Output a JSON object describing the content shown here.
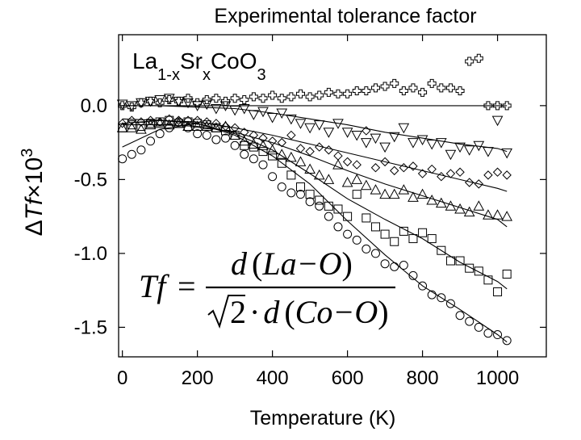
{
  "chart_data": {
    "type": "scatter",
    "title": "Experimental tolerance factor",
    "xlabel": "Temperature (K)",
    "ylabel": {
      "prefix": "Δ",
      "italic": "Tf",
      "times": "×",
      "base": "10",
      "exp": "3"
    },
    "xlim": [
      -10,
      1130
    ],
    "ylim": [
      -1.7,
      0.48
    ],
    "xticks": [
      0,
      200,
      400,
      600,
      800,
      1000
    ],
    "xtick_labels": [
      "0",
      "200",
      "400",
      "600",
      "800",
      "1000"
    ],
    "yticks": [
      0.0,
      -0.5,
      -1.0,
      -1.5
    ],
    "ytick_labels": [
      "0.0",
      "-0.5",
      "-1.0",
      "-1.5"
    ],
    "grid": false,
    "annotation": {
      "base1": "La",
      "sub1": "1-x",
      "base2": "Sr",
      "sub2": "x",
      "base3": "CoO",
      "sub3": "3"
    },
    "formula": {
      "lhs": "Tf",
      "eq": "=",
      "num_d": "d",
      "num_inner": "La−O",
      "den_sqrt": "2",
      "den_dot": "·",
      "den_d": "d",
      "den_inner": "Co−O"
    },
    "series": [
      {
        "marker": "circle",
        "x": [
          0,
          25,
          50,
          75,
          100,
          125,
          150,
          175,
          200,
          225,
          250,
          275,
          300,
          325,
          350,
          375,
          400,
          425,
          450,
          475,
          500,
          525,
          550,
          575,
          600,
          625,
          650,
          675,
          700,
          725,
          750,
          775,
          800,
          825,
          850,
          875,
          900,
          925,
          950,
          975,
          1000,
          1025
        ],
        "y": [
          -0.36,
          -0.33,
          -0.3,
          -0.24,
          -0.19,
          -0.15,
          -0.11,
          -0.15,
          -0.19,
          -0.2,
          -0.23,
          -0.22,
          -0.27,
          -0.33,
          -0.36,
          -0.4,
          -0.48,
          -0.55,
          -0.59,
          -0.6,
          -0.65,
          -0.68,
          -0.75,
          -0.82,
          -0.87,
          -0.91,
          -0.97,
          -1.0,
          -1.07,
          -1.09,
          -1.08,
          -1.15,
          -1.22,
          -1.28,
          -1.3,
          -1.34,
          -1.42,
          -1.46,
          -1.5,
          -1.54,
          -1.55,
          -1.59
        ],
        "fit": {
          "x": [
            0,
            100,
            200,
            300,
            400,
            500,
            600,
            700,
            800,
            900,
            1000,
            1025
          ],
          "y": [
            -0.28,
            -0.16,
            -0.12,
            -0.2,
            -0.34,
            -0.53,
            -0.78,
            -1.01,
            -1.22,
            -1.38,
            -1.55,
            -1.6
          ]
        }
      },
      {
        "marker": "square",
        "x": [
          0,
          25,
          50,
          75,
          100,
          125,
          150,
          175,
          200,
          225,
          250,
          275,
          300,
          325,
          350,
          375,
          400,
          425,
          450,
          475,
          500,
          525,
          550,
          575,
          600,
          625,
          650,
          675,
          700,
          725,
          750,
          775,
          800,
          825,
          850,
          875,
          900,
          925,
          950,
          975,
          1000,
          1025
        ],
        "y": [
          -0.15,
          -0.13,
          -0.14,
          -0.12,
          -0.11,
          -0.1,
          -0.12,
          -0.11,
          -0.12,
          -0.13,
          -0.15,
          -0.17,
          -0.2,
          -0.27,
          -0.28,
          -0.31,
          -0.34,
          -0.39,
          -0.47,
          -0.55,
          -0.6,
          -0.64,
          -0.68,
          -0.7,
          -0.75,
          -0.6,
          -0.76,
          -0.82,
          -0.87,
          -0.92,
          -0.85,
          -0.9,
          -0.86,
          -0.9,
          -0.98,
          -1.05,
          -1.05,
          -1.1,
          -1.12,
          -1.18,
          -1.26,
          -1.14
        ],
        "fit": {
          "x": [
            0,
            100,
            200,
            300,
            400,
            500,
            600,
            700,
            800,
            900,
            1000,
            1025
          ],
          "y": [
            -0.12,
            -0.1,
            -0.12,
            -0.19,
            -0.3,
            -0.46,
            -0.63,
            -0.77,
            -0.9,
            -1.06,
            -1.19,
            -1.24
          ]
        }
      },
      {
        "marker": "triangle-up",
        "x": [
          0,
          25,
          50,
          75,
          100,
          125,
          150,
          175,
          200,
          225,
          250,
          275,
          300,
          325,
          350,
          375,
          400,
          425,
          450,
          475,
          500,
          525,
          550,
          575,
          600,
          625,
          650,
          675,
          700,
          725,
          750,
          775,
          800,
          825,
          850,
          875,
          900,
          925,
          950,
          975,
          1000,
          1025
        ],
        "y": [
          -0.15,
          -0.15,
          -0.16,
          -0.13,
          -0.12,
          -0.13,
          -0.12,
          -0.14,
          -0.14,
          -0.14,
          -0.15,
          -0.14,
          -0.2,
          -0.24,
          -0.26,
          -0.27,
          -0.3,
          -0.33,
          -0.35,
          -0.38,
          -0.43,
          -0.47,
          -0.5,
          -0.4,
          -0.52,
          -0.5,
          -0.54,
          -0.57,
          -0.6,
          -0.6,
          -0.57,
          -0.62,
          -0.6,
          -0.64,
          -0.66,
          -0.68,
          -0.7,
          -0.72,
          -0.68,
          -0.74,
          -0.74,
          -0.75
        ],
        "fit": {
          "x": [
            0,
            100,
            200,
            300,
            400,
            500,
            600,
            700,
            800,
            900,
            1000,
            1025
          ],
          "y": [
            -0.13,
            -0.13,
            -0.14,
            -0.18,
            -0.25,
            -0.34,
            -0.44,
            -0.53,
            -0.61,
            -0.69,
            -0.77,
            -0.82
          ]
        }
      },
      {
        "marker": "diamond",
        "x": [
          0,
          25,
          50,
          75,
          100,
          125,
          150,
          175,
          200,
          225,
          250,
          275,
          300,
          325,
          350,
          375,
          400,
          425,
          450,
          475,
          500,
          525,
          550,
          575,
          600,
          625,
          650,
          675,
          700,
          725,
          750,
          775,
          800,
          825,
          850,
          875,
          900,
          925,
          950,
          975,
          1000,
          1025
        ],
        "y": [
          -0.12,
          -0.1,
          -0.11,
          -0.1,
          -0.11,
          -0.09,
          -0.1,
          -0.1,
          -0.1,
          -0.11,
          -0.12,
          -0.14,
          -0.15,
          -0.18,
          -0.2,
          -0.22,
          -0.24,
          -0.25,
          -0.2,
          -0.29,
          -0.31,
          -0.28,
          -0.3,
          -0.34,
          -0.38,
          -0.4,
          -0.17,
          -0.42,
          -0.38,
          -0.44,
          -0.42,
          -0.41,
          -0.46,
          -0.43,
          -0.48,
          -0.46,
          -0.45,
          -0.52,
          -0.53,
          -0.47,
          -0.45,
          -0.47
        ],
        "fit": {
          "x": [
            0,
            100,
            200,
            300,
            400,
            500,
            600,
            700,
            800,
            900,
            1000,
            1025
          ],
          "y": [
            -0.09,
            -0.1,
            -0.11,
            -0.15,
            -0.2,
            -0.26,
            -0.32,
            -0.38,
            -0.44,
            -0.5,
            -0.56,
            -0.58
          ]
        }
      },
      {
        "marker": "triangle-down",
        "x": [
          0,
          25,
          50,
          75,
          100,
          125,
          150,
          175,
          200,
          225,
          250,
          275,
          300,
          325,
          350,
          375,
          400,
          425,
          450,
          475,
          500,
          525,
          550,
          575,
          600,
          625,
          650,
          675,
          700,
          725,
          750,
          775,
          800,
          825,
          850,
          875,
          900,
          925,
          950,
          975,
          1000,
          1025
        ],
        "y": [
          0.01,
          0.0,
          0.02,
          0.03,
          0.04,
          0.05,
          0.03,
          0.02,
          0.0,
          0.01,
          -0.02,
          0.0,
          -0.03,
          -0.02,
          -0.06,
          -0.04,
          -0.08,
          -0.05,
          -0.09,
          -0.12,
          -0.15,
          -0.13,
          -0.18,
          -0.12,
          -0.18,
          -0.2,
          -0.25,
          -0.22,
          -0.28,
          -0.21,
          -0.15,
          -0.25,
          -0.23,
          -0.26,
          -0.25,
          -0.33,
          -0.28,
          -0.3,
          -0.27,
          -0.31,
          -0.1,
          -0.32
        ],
        "fit": {
          "x": [
            0,
            100,
            200,
            300,
            400,
            500,
            600,
            700,
            800,
            900,
            1000,
            1025
          ],
          "y": [
            0.0,
            0.0,
            -0.01,
            -0.02,
            -0.05,
            -0.09,
            -0.13,
            -0.18,
            -0.22,
            -0.26,
            -0.29,
            -0.31
          ]
        }
      },
      {
        "marker": "cross",
        "x": [
          0,
          25,
          50,
          75,
          100,
          125,
          150,
          175,
          200,
          225,
          250,
          275,
          300,
          325,
          350,
          375,
          400,
          425,
          450,
          475,
          500,
          525,
          550,
          575,
          600,
          625,
          650,
          675,
          700,
          725,
          750,
          775,
          800,
          825,
          850,
          875,
          900,
          925,
          950,
          975,
          1000,
          1025
        ],
        "y": [
          0.0,
          -0.01,
          0.02,
          0.03,
          0.02,
          0.04,
          0.03,
          0.05,
          0.02,
          0.04,
          0.05,
          0.03,
          0.05,
          0.04,
          0.06,
          0.05,
          0.07,
          0.05,
          0.06,
          0.08,
          0.06,
          0.07,
          0.09,
          0.08,
          0.08,
          0.1,
          0.1,
          0.12,
          0.13,
          0.15,
          0.1,
          0.12,
          0.09,
          0.15,
          0.12,
          0.12,
          0.1,
          0.3,
          0.32,
          0.0,
          0.0,
          0.0
        ],
        "fit": {
          "x": [
            0,
            100,
            200,
            300,
            400,
            500,
            600,
            700,
            800,
            900,
            1000,
            1025
          ],
          "y": [
            0.0,
            0.0,
            0.0,
            0.0,
            0.0,
            0.0,
            0.0,
            0.0,
            0.0,
            0.0,
            0.0,
            0.0
          ]
        }
      }
    ]
  }
}
